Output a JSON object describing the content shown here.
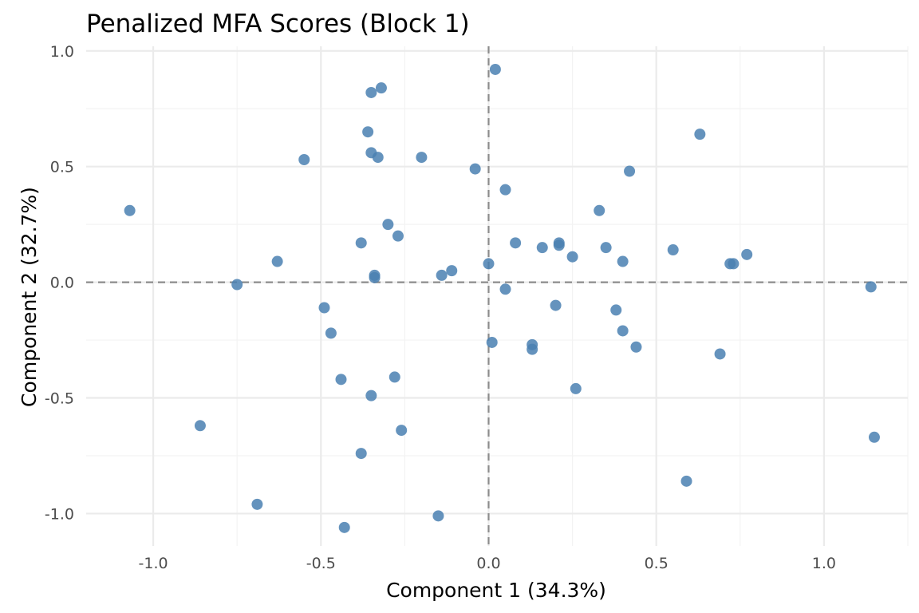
{
  "chart_data": {
    "type": "scatter",
    "title": "Penalized MFA Scores (Block 1)",
    "xlabel": "Component 1 (34.3%)",
    "ylabel": "Component 2 (32.7%)",
    "xlim": [
      -1.2,
      1.25
    ],
    "ylim": [
      -1.14,
      1.02
    ],
    "x_ticks": [
      -1.0,
      -0.5,
      0.0,
      0.5,
      1.0
    ],
    "x_tick_labels": [
      "-1.0",
      "-0.5",
      "0.0",
      "0.5",
      "1.0"
    ],
    "y_ticks": [
      -1.0,
      -0.5,
      0.0,
      0.5,
      1.0
    ],
    "y_tick_labels": [
      "-1.0",
      "-0.5",
      "0.0",
      "0.5",
      "1.0"
    ],
    "reference_lines": {
      "x": 0,
      "y": 0
    },
    "grid": true,
    "point_color": "#4a80b2",
    "points": [
      {
        "x": 0.02,
        "y": 0.92
      },
      {
        "x": -0.32,
        "y": 0.84
      },
      {
        "x": -0.35,
        "y": 0.82
      },
      {
        "x": -0.36,
        "y": 0.65
      },
      {
        "x": 0.63,
        "y": 0.64
      },
      {
        "x": -0.35,
        "y": 0.56
      },
      {
        "x": -0.33,
        "y": 0.54
      },
      {
        "x": -0.2,
        "y": 0.54
      },
      {
        "x": -0.55,
        "y": 0.53
      },
      {
        "x": -0.04,
        "y": 0.49
      },
      {
        "x": 0.42,
        "y": 0.48
      },
      {
        "x": 0.05,
        "y": 0.4
      },
      {
        "x": -1.07,
        "y": 0.31
      },
      {
        "x": 0.33,
        "y": 0.31
      },
      {
        "x": -0.3,
        "y": 0.25
      },
      {
        "x": -0.27,
        "y": 0.2
      },
      {
        "x": -0.38,
        "y": 0.17
      },
      {
        "x": 0.08,
        "y": 0.17
      },
      {
        "x": 0.21,
        "y": 0.17
      },
      {
        "x": 0.21,
        "y": 0.16
      },
      {
        "x": 0.16,
        "y": 0.15
      },
      {
        "x": 0.35,
        "y": 0.15
      },
      {
        "x": 0.55,
        "y": 0.14
      },
      {
        "x": 0.77,
        "y": 0.12
      },
      {
        "x": 0.25,
        "y": 0.11
      },
      {
        "x": 0.4,
        "y": 0.09
      },
      {
        "x": 0.72,
        "y": 0.08
      },
      {
        "x": 0.73,
        "y": 0.08
      },
      {
        "x": -0.63,
        "y": 0.09
      },
      {
        "x": 0.0,
        "y": 0.08
      },
      {
        "x": -0.11,
        "y": 0.05
      },
      {
        "x": -0.14,
        "y": 0.03
      },
      {
        "x": -0.34,
        "y": 0.03
      },
      {
        "x": -0.34,
        "y": 0.02
      },
      {
        "x": -0.75,
        "y": -0.01
      },
      {
        "x": 1.14,
        "y": -0.02
      },
      {
        "x": 0.05,
        "y": -0.03
      },
      {
        "x": 0.2,
        "y": -0.1
      },
      {
        "x": -0.49,
        "y": -0.11
      },
      {
        "x": 0.38,
        "y": -0.12
      },
      {
        "x": 0.4,
        "y": -0.21
      },
      {
        "x": -0.47,
        "y": -0.22
      },
      {
        "x": 0.01,
        "y": -0.26
      },
      {
        "x": 0.13,
        "y": -0.27
      },
      {
        "x": 0.13,
        "y": -0.29
      },
      {
        "x": 0.44,
        "y": -0.28
      },
      {
        "x": 0.69,
        "y": -0.31
      },
      {
        "x": -0.28,
        "y": -0.41
      },
      {
        "x": -0.44,
        "y": -0.42
      },
      {
        "x": 0.26,
        "y": -0.46
      },
      {
        "x": -0.35,
        "y": -0.49
      },
      {
        "x": -0.86,
        "y": -0.62
      },
      {
        "x": -0.26,
        "y": -0.64
      },
      {
        "x": 1.15,
        "y": -0.67
      },
      {
        "x": -0.38,
        "y": -0.74
      },
      {
        "x": 0.59,
        "y": -0.86
      },
      {
        "x": -0.69,
        "y": -0.96
      },
      {
        "x": -0.15,
        "y": -1.01
      },
      {
        "x": -0.43,
        "y": -1.06
      }
    ]
  }
}
